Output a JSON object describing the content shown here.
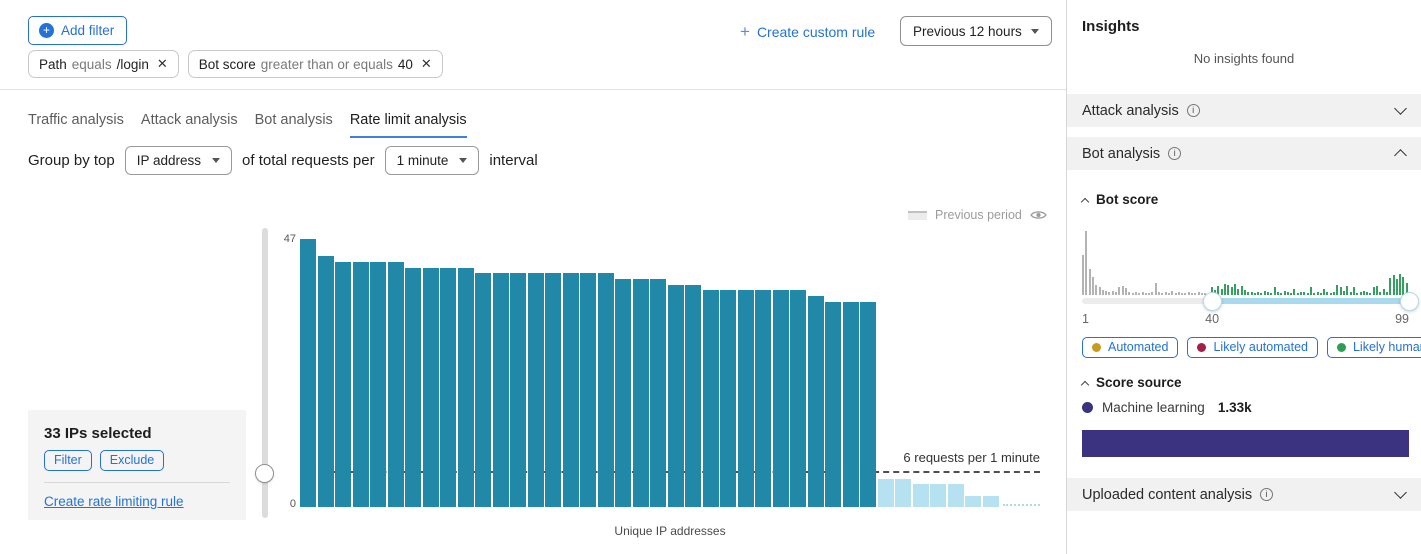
{
  "colors": {
    "accent_blue": "#2472d8",
    "bar_selected": "#2288a8",
    "bar_below_threshold": "#b6e1f0",
    "hist_gray": "#b3b3b3",
    "hist_green": "#35a05f",
    "dot_automated": "#c99b1d",
    "dot_likely_automated": "#a41f48",
    "dot_likely_human": "#2f9e55",
    "score_source_purple": "#3b3280"
  },
  "icons": {
    "plus": "+",
    "close": "✕",
    "info": "i"
  },
  "toolbar": {
    "add_filter": "Add filter",
    "create_custom_rule": "Create custom rule",
    "time_range": "Previous 12 hours"
  },
  "filter_chips": [
    {
      "field": "Path",
      "operator": "equals",
      "value": "/login"
    },
    {
      "field": "Bot score",
      "operator": "greater than or equals",
      "value": "40"
    }
  ],
  "tabs": [
    {
      "label": "Traffic analysis"
    },
    {
      "label": "Attack analysis"
    },
    {
      "label": "Bot analysis"
    },
    {
      "label": "Rate limit analysis",
      "active": true
    }
  ],
  "group_controls": {
    "prefix": "Group by top",
    "group_by": "IP address",
    "middle": "of total requests per",
    "interval": "1 minute",
    "suffix": "interval"
  },
  "selection_box": {
    "title": "33 IPs selected",
    "filter_button": "Filter",
    "exclude_button": "Exclude",
    "link": "Create rate limiting rule"
  },
  "chart_data": [
    {
      "id": "rate-limit-bar-chart",
      "type": "bar",
      "xlabel": "Unique IP addresses",
      "ylabel": "",
      "ylim": [
        0,
        47
      ],
      "y_axis_labels": {
        "top": "47",
        "bottom": "0"
      },
      "threshold": {
        "value": 6,
        "label": "6 requests per 1 minute"
      },
      "legend_label": "Previous period",
      "series": [
        {
          "name": "selected-ip",
          "color": "#2288a8",
          "values": [
            47,
            44,
            43,
            43,
            43,
            43,
            42,
            42,
            42,
            42,
            41,
            41,
            41,
            41,
            41,
            41,
            41,
            41,
            40,
            40,
            40,
            39,
            39,
            38,
            38,
            38,
            38,
            38,
            38,
            37,
            36,
            36,
            36
          ]
        },
        {
          "name": "below-threshold-ip",
          "color": "#b6e1f0",
          "values": [
            5,
            5,
            4,
            4,
            4,
            2,
            2
          ]
        }
      ]
    },
    {
      "id": "bot-score-histogram",
      "type": "bar",
      "x_range": [
        1,
        99
      ],
      "threshold_score": 40,
      "colors": {
        "below": "#b3b3b3",
        "above": "#35a05f"
      },
      "values": [
        40,
        64,
        26,
        18,
        10,
        8,
        5,
        4,
        3,
        4,
        3,
        8,
        9,
        7,
        3,
        2,
        3,
        2,
        3,
        2,
        2,
        3,
        12,
        3,
        2,
        3,
        2,
        4,
        2,
        3,
        2,
        2,
        3,
        2,
        2,
        3,
        2,
        2,
        2,
        8,
        5,
        9,
        6,
        11,
        10,
        8,
        11,
        6,
        9,
        5,
        3,
        3,
        2,
        3,
        2,
        4,
        3,
        2,
        8,
        3,
        2,
        4,
        3,
        2,
        6,
        2,
        3,
        3,
        2,
        8,
        2,
        3,
        2,
        6,
        3,
        2,
        3,
        10,
        8,
        4,
        9,
        3,
        8,
        2,
        3,
        4,
        3,
        2,
        8,
        9,
        3,
        6,
        3,
        17,
        20,
        16,
        21,
        18,
        12
      ]
    }
  ],
  "insights": {
    "title": "Insights",
    "empty": "No insights found"
  },
  "sections": {
    "attack": "Attack analysis",
    "bot": "Bot analysis",
    "uploaded": "Uploaded content analysis"
  },
  "bot_panel": {
    "bot_score_title": "Bot score",
    "slider": {
      "min": 1,
      "handle": 40,
      "max": 99,
      "min_label": "1",
      "handle_label": "40",
      "max_label": "99"
    },
    "legend_chips": [
      {
        "label": "Automated"
      },
      {
        "label": "Likely automated"
      },
      {
        "label": "Likely human"
      }
    ],
    "score_source_title": "Score source",
    "score_sources": [
      {
        "label": "Machine learning",
        "value": "1.33k"
      }
    ]
  }
}
